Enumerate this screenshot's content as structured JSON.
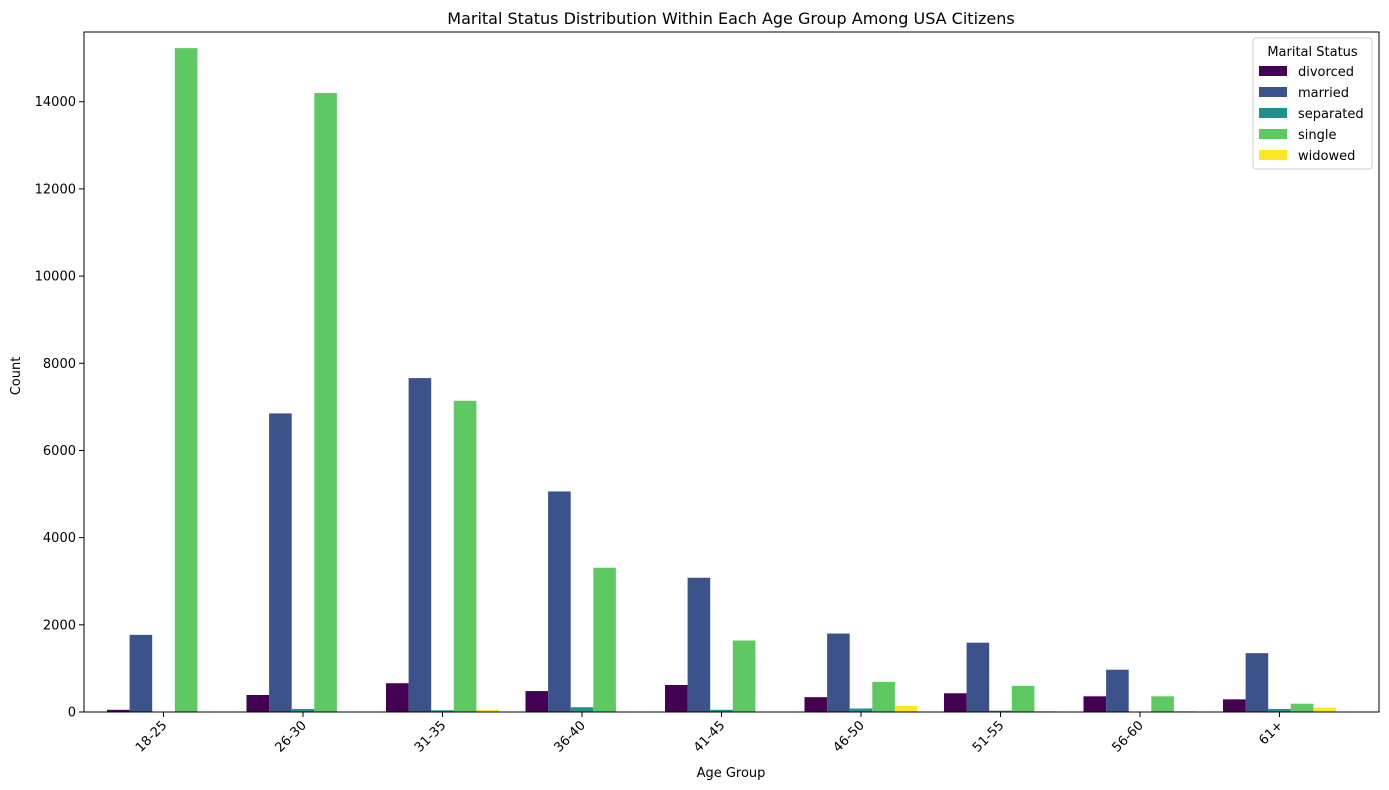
{
  "chart_data": {
    "type": "bar",
    "title": "Marital Status Distribution Within Each Age Group Among USA Citizens",
    "xlabel": "Age Group",
    "ylabel": "Count",
    "ylim": [
      0,
      15600
    ],
    "yticks": [
      0,
      2000,
      4000,
      6000,
      8000,
      10000,
      12000,
      14000
    ],
    "tick_rotation_deg": 45,
    "categories": [
      "18-25",
      "26-30",
      "31-35",
      "36-40",
      "41-45",
      "46-50",
      "51-55",
      "56-60",
      "61+"
    ],
    "legend": {
      "title": "Marital Status",
      "placement": "top-right"
    },
    "series": [
      {
        "name": "divorced",
        "color": "#440154",
        "values": [
          50,
          390,
          660,
          480,
          620,
          340,
          430,
          360,
          290
        ]
      },
      {
        "name": "married",
        "color": "#3b528b",
        "values": [
          1770,
          6850,
          7660,
          5060,
          3080,
          1800,
          1590,
          970,
          1350
        ]
      },
      {
        "name": "separated",
        "color": "#21918c",
        "values": [
          10,
          70,
          40,
          110,
          50,
          80,
          30,
          10,
          70
        ]
      },
      {
        "name": "single",
        "color": "#5ec962",
        "values": [
          15230,
          14200,
          7140,
          3310,
          1640,
          690,
          600,
          360,
          190
        ]
      },
      {
        "name": "widowed",
        "color": "#fde725",
        "values": [
          10,
          10,
          50,
          10,
          10,
          140,
          20,
          20,
          100
        ]
      }
    ]
  }
}
